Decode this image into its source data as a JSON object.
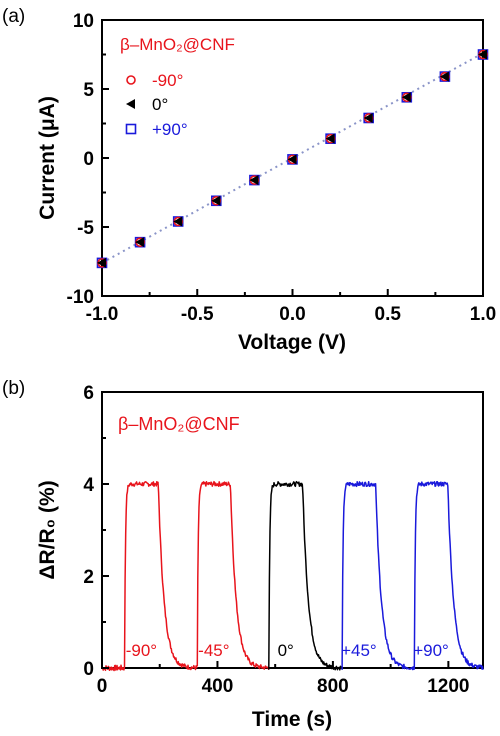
{
  "chart_data": [
    {
      "panel": "(a)",
      "type": "scatter",
      "annotation": "β–MnO₂@CNF",
      "xlabel": "Voltage (V)",
      "ylabel": "Current (μA)",
      "xlim": [
        -1.0,
        1.0
      ],
      "ylim": [
        -10,
        10
      ],
      "xticks": [
        "-1.0",
        "-0.5",
        "0.0",
        "0.5",
        "1.0"
      ],
      "xtick_values": [
        -1.0,
        -0.5,
        0.0,
        0.5,
        1.0
      ],
      "yticks": [
        "10",
        "5",
        "0",
        "-5",
        "-10"
      ],
      "ytick_values": [
        10,
        5,
        0,
        -5,
        -10
      ],
      "legend_placement": "top-left",
      "fit_line": {
        "style": "dotted",
        "color": "#8a94c8",
        "x": [
          -1.0,
          1.0
        ],
        "y": [
          -7.6,
          7.6
        ]
      },
      "series": [
        {
          "name": "-90°",
          "marker": "circle-open",
          "color": "#e8141c",
          "x": [
            -1.0,
            -0.8,
            -0.6,
            -0.4,
            -0.2,
            0.0,
            0.2,
            0.4,
            0.6,
            0.8,
            1.0
          ],
          "y": [
            -7.6,
            -6.1,
            -4.6,
            -3.1,
            -1.6,
            -0.1,
            1.4,
            2.9,
            4.4,
            5.9,
            7.5
          ]
        },
        {
          "name": "0°",
          "marker": "triangle-left",
          "color": "#000000",
          "x": [
            -1.0,
            -0.8,
            -0.6,
            -0.4,
            -0.2,
            0.0,
            0.2,
            0.4,
            0.6,
            0.8,
            1.0
          ],
          "y": [
            -7.6,
            -6.1,
            -4.6,
            -3.1,
            -1.6,
            -0.1,
            1.4,
            2.9,
            4.4,
            5.9,
            7.5
          ]
        },
        {
          "name": "+90°",
          "marker": "square-open",
          "color": "#1a1adb",
          "x": [
            -1.0,
            -0.8,
            -0.6,
            -0.4,
            -0.2,
            0.0,
            0.2,
            0.4,
            0.6,
            0.8,
            1.0
          ],
          "y": [
            -7.6,
            -6.1,
            -4.6,
            -3.1,
            -1.6,
            -0.1,
            1.4,
            2.9,
            4.4,
            5.9,
            7.5
          ]
        }
      ]
    },
    {
      "panel": "(b)",
      "type": "line",
      "annotation": "β–MnO₂@CNF",
      "xlabel": "Time (s)",
      "ylabel": "ΔR/R₀ (%)",
      "xlim": [
        0,
        1320
      ],
      "ylim": [
        0,
        6
      ],
      "xticks": [
        "0",
        "400",
        "800",
        "1200"
      ],
      "xtick_values": [
        0,
        400,
        800,
        1200
      ],
      "yticks": [
        "6",
        "4",
        "2",
        "0"
      ],
      "ytick_values": [
        6,
        4,
        2,
        0
      ],
      "baseline": 0.0,
      "plateau": 4.0,
      "pulses": [
        {
          "label": "-90°",
          "color": "#e8141c",
          "on": 78,
          "off": 195,
          "end": 330
        },
        {
          "label": "-45°",
          "color": "#e8141c",
          "on": 330,
          "off": 445,
          "end": 578
        },
        {
          "label": "0°",
          "color": "#000000",
          "on": 578,
          "off": 695,
          "end": 832
        },
        {
          "label": "+45°",
          "color": "#1a1adb",
          "on": 832,
          "off": 948,
          "end": 1082
        },
        {
          "label": "+90°",
          "color": "#1a1adb",
          "on": 1082,
          "off": 1198,
          "end": 1320
        }
      ]
    }
  ]
}
